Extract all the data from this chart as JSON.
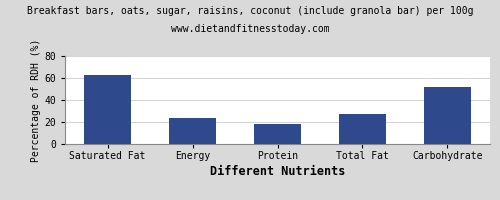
{
  "title": "Breakfast bars, oats, sugar, raisins, coconut (include granola bar) per 100g",
  "subtitle": "www.dietandfitnesstoday.com",
  "categories": [
    "Saturated Fat",
    "Energy",
    "Protein",
    "Total Fat",
    "Carbohydrate"
  ],
  "values": [
    63,
    24,
    18,
    27,
    52
  ],
  "bar_color": "#2e4a8c",
  "ylabel": "Percentage of RDH (%)",
  "xlabel": "Different Nutrients",
  "ylim": [
    0,
    80
  ],
  "yticks": [
    0,
    20,
    40,
    60,
    80
  ],
  "title_fontsize": 7.0,
  "subtitle_fontsize": 7.0,
  "ylabel_fontsize": 7.0,
  "xlabel_fontsize": 8.5,
  "tick_fontsize": 7.0,
  "background_color": "#d9d9d9",
  "plot_bg_color": "#ffffff"
}
